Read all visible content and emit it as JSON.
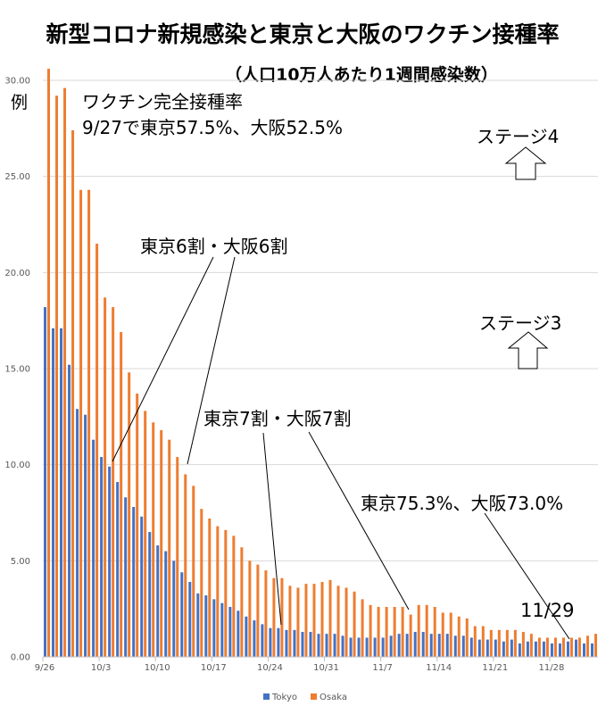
{
  "chart_data": {
    "type": "bar",
    "title": "新型コロナ新規感染と東京と大阪のワクチン接種率",
    "subtitle": "（人口10万人あたり1週間感染数）",
    "ylabel": "例",
    "xlabel": "",
    "ylim": [
      0,
      30
    ],
    "yticks": [
      "0.00",
      "5.00",
      "10.00",
      "15.00",
      "20.00",
      "25.00",
      "30.00"
    ],
    "ytick_values": [
      0,
      5,
      10,
      15,
      20,
      25,
      30
    ],
    "xtick_labels": [
      "9/26",
      "10/3",
      "10/10",
      "10/17",
      "10/24",
      "10/31",
      "11/7",
      "11/14",
      "11/21",
      "11/28"
    ],
    "xtick_every": 7,
    "grid": true,
    "legend_position": "bottom",
    "categories": [
      "9/26",
      "9/27",
      "9/28",
      "9/29",
      "9/30",
      "10/1",
      "10/2",
      "10/3",
      "10/4",
      "10/5",
      "10/6",
      "10/7",
      "10/8",
      "10/9",
      "10/10",
      "10/11",
      "10/12",
      "10/13",
      "10/14",
      "10/15",
      "10/16",
      "10/17",
      "10/18",
      "10/19",
      "10/20",
      "10/21",
      "10/22",
      "10/23",
      "10/24",
      "10/25",
      "10/26",
      "10/27",
      "10/28",
      "10/29",
      "10/30",
      "10/31",
      "11/1",
      "11/2",
      "11/3",
      "11/4",
      "11/5",
      "11/6",
      "11/7",
      "11/8",
      "11/9",
      "11/10",
      "11/11",
      "11/12",
      "11/13",
      "11/14",
      "11/15",
      "11/16",
      "11/17",
      "11/18",
      "11/19",
      "11/20",
      "11/21",
      "11/22",
      "11/23",
      "11/24",
      "11/25",
      "11/26",
      "11/27",
      "11/28",
      "11/29",
      "11/30",
      "12/1",
      "12/2",
      "12/3"
    ],
    "series": [
      {
        "name": "Tokyo",
        "color": "#4472C4",
        "values": [
          18.2,
          17.1,
          17.1,
          15.2,
          12.9,
          12.6,
          11.3,
          10.4,
          9.9,
          9.1,
          8.3,
          7.8,
          7.3,
          6.5,
          5.8,
          5.5,
          5.0,
          4.4,
          3.9,
          3.3,
          3.2,
          3.0,
          2.8,
          2.6,
          2.4,
          2.1,
          1.9,
          1.7,
          1.5,
          1.5,
          1.4,
          1.4,
          1.3,
          1.3,
          1.2,
          1.2,
          1.2,
          1.1,
          1.0,
          1.0,
          1.0,
          1.0,
          1.0,
          1.1,
          1.2,
          1.2,
          1.3,
          1.3,
          1.2,
          1.2,
          1.2,
          1.1,
          1.1,
          1.0,
          0.9,
          0.9,
          0.9,
          0.8,
          0.9,
          0.7,
          0.8,
          0.8,
          0.8,
          0.7,
          0.7,
          0.8,
          0.9,
          0.7,
          0.7
        ]
      },
      {
        "name": "Osaka",
        "color": "#ED7D31",
        "values": [
          30.6,
          29.2,
          29.6,
          27.4,
          24.3,
          24.3,
          21.5,
          18.7,
          18.2,
          16.9,
          14.8,
          13.7,
          12.8,
          12.2,
          11.8,
          11.3,
          10.4,
          9.5,
          8.9,
          7.7,
          7.2,
          6.8,
          6.6,
          6.3,
          5.7,
          5.0,
          4.8,
          4.5,
          4.1,
          4.1,
          3.7,
          3.6,
          3.8,
          3.8,
          3.9,
          4.0,
          3.7,
          3.6,
          3.4,
          3.0,
          2.7,
          2.6,
          2.6,
          2.6,
          2.6,
          2.2,
          2.7,
          2.7,
          2.6,
          2.3,
          2.3,
          2.1,
          2.0,
          1.6,
          1.6,
          1.4,
          1.4,
          1.4,
          1.4,
          1.3,
          1.2,
          1.0,
          1.0,
          1.0,
          1.0,
          1.0,
          1.0,
          1.1,
          1.2
        ]
      }
    ],
    "annotations": [
      {
        "id": "vaccine-rate-0927",
        "lines": [
          "ワクチン完全接種率",
          "9/27で東京57.5%、大阪52.5%"
        ]
      },
      {
        "id": "sixty-percent",
        "text": "東京6割・大阪6割",
        "points_to": [
          {
            "series": "Tokyo",
            "date": "10/4"
          },
          {
            "series": "Osaka",
            "date": "10/14"
          }
        ]
      },
      {
        "id": "seventy-percent",
        "text": "東京7割・大阪7割",
        "points_to": [
          {
            "series": "Tokyo",
            "date": "10/28"
          },
          {
            "series": "Osaka",
            "date": "11/10"
          }
        ]
      },
      {
        "id": "rate-1129",
        "text": "東京75.3%、大阪73.0%",
        "points_to": [
          {
            "series": "Tokyo",
            "date": "11/30"
          }
        ]
      },
      {
        "id": "date-1129",
        "text": "11/29"
      },
      {
        "id": "stage4",
        "text": "ステージ4",
        "level_arrow": "up"
      },
      {
        "id": "stage3",
        "text": "ステージ3",
        "level_arrow": "up"
      }
    ]
  }
}
